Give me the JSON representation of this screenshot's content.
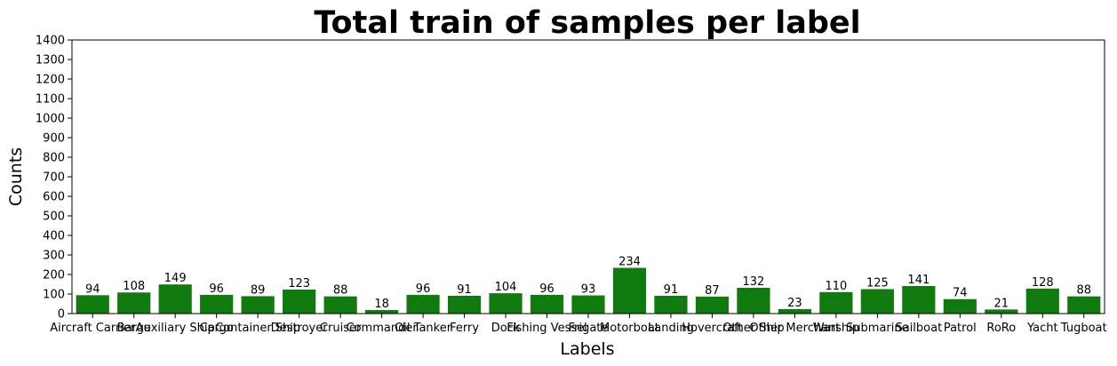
{
  "chart_data": {
    "type": "bar",
    "title": "Total train of samples per label",
    "xlabel": "Labels",
    "ylabel": "Counts",
    "ylim": [
      0,
      1400
    ],
    "yticks": [
      0,
      100,
      200,
      300,
      400,
      500,
      600,
      700,
      800,
      900,
      1000,
      1100,
      1200,
      1300,
      1400
    ],
    "grid": false,
    "bar_color": "#107a0e",
    "categories": [
      "Aircraft Carrier",
      "Barge",
      "Auxiliary Ship",
      "Cargo",
      "Container Ship",
      "Destroyer",
      "Cruiser",
      "Commander",
      "Oil Tanker",
      "Ferry",
      "Dock",
      "Fishing Vessel",
      "Frigate",
      "Motorboat",
      "Landing",
      "Hovercraft",
      "Other Ship",
      "Other Merchant",
      "Warship",
      "Submarine",
      "Sailboat",
      "Patrol",
      "RoRo",
      "Yacht",
      "Tugboat"
    ],
    "values": [
      94,
      108,
      149,
      96,
      89,
      123,
      88,
      18,
      96,
      91,
      104,
      96,
      93,
      234,
      91,
      87,
      132,
      23,
      110,
      125,
      141,
      74,
      21,
      128,
      88
    ]
  }
}
